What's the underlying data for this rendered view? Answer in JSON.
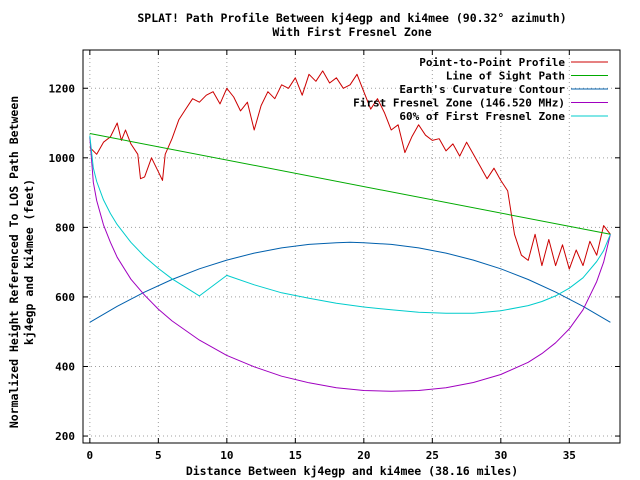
{
  "chart_data": {
    "type": "line",
    "title": "SPLAT! Path Profile Between kj4egp and ki4mee (90.32° azimuth)",
    "subtitle": "With First Fresnel Zone",
    "xlabel": "Distance Between kj4egp and ki4mee (38.16 miles)",
    "ylabel_line1": "Normalized Height Referenced To LOS Path Between",
    "ylabel_line2": "kj4egp and ki4mee (feet)",
    "xlim": [
      -0.5,
      38.7
    ],
    "ylim": [
      180,
      1310
    ],
    "xticks": [
      0,
      5,
      10,
      15,
      20,
      25,
      30,
      35
    ],
    "yticks": [
      200,
      400,
      600,
      800,
      1000,
      1200
    ],
    "grid": true,
    "legend_position": "top-right",
    "series": [
      {
        "name": "Point-to-Point Profile",
        "color": "#cc0000",
        "x": [
          0,
          0.5,
          1,
          1.5,
          2,
          2.3,
          2.6,
          3,
          3.5,
          3.7,
          4,
          4.5,
          5,
          5.3,
          5.5,
          6,
          6.5,
          7,
          7.5,
          8,
          8.5,
          9,
          9.5,
          10,
          10.5,
          11,
          11.5,
          12,
          12.5,
          13,
          13.5,
          14,
          14.5,
          15,
          15.5,
          16,
          16.5,
          17,
          17.5,
          18,
          18.5,
          19,
          19.5,
          20,
          20.5,
          21,
          21.5,
          22,
          22.5,
          23,
          23.5,
          24,
          24.5,
          25,
          25.5,
          26,
          26.5,
          27,
          27.5,
          28,
          28.5,
          29,
          29.5,
          30,
          30.5,
          31,
          31.5,
          32,
          32.5,
          33,
          33.5,
          34,
          34.5,
          35,
          35.5,
          36,
          36.5,
          37,
          37.5,
          38
        ],
        "y": [
          1030,
          1010,
          1045,
          1060,
          1100,
          1050,
          1080,
          1040,
          1010,
          940,
          945,
          1000,
          960,
          935,
          1010,
          1055,
          1110,
          1140,
          1170,
          1160,
          1180,
          1190,
          1155,
          1200,
          1175,
          1135,
          1160,
          1080,
          1150,
          1190,
          1170,
          1210,
          1200,
          1230,
          1180,
          1240,
          1220,
          1250,
          1215,
          1230,
          1200,
          1210,
          1240,
          1190,
          1140,
          1170,
          1130,
          1080,
          1095,
          1015,
          1060,
          1095,
          1065,
          1050,
          1055,
          1020,
          1040,
          1005,
          1045,
          1010,
          975,
          940,
          970,
          935,
          905,
          780,
          720,
          705,
          780,
          690,
          765,
          690,
          750,
          680,
          735,
          690,
          760,
          720,
          805,
          780
        ],
        "dash": false
      },
      {
        "name": "Line of Sight Path",
        "color": "#00aa00",
        "x": [
          0,
          38
        ],
        "y": [
          1070,
          780
        ],
        "dash": false
      },
      {
        "name": "Earth's Curvature Contour",
        "color": "#0060ad",
        "x": [
          0,
          2,
          4,
          6,
          8,
          10,
          12,
          14,
          16,
          18,
          19,
          20,
          22,
          24,
          26,
          28,
          30,
          32,
          34,
          36,
          38
        ],
        "y": [
          527,
          573,
          614,
          650,
          681,
          706,
          726,
          741,
          751,
          756,
          757,
          756,
          751,
          741,
          726,
          706,
          681,
          650,
          614,
          573,
          527
        ],
        "dash": false
      },
      {
        "name": "First Fresnel Zone (146.520 MHz)",
        "color": "#a000c0",
        "x": [
          0,
          0.25,
          0.5,
          1,
          1.5,
          2,
          3,
          4,
          5,
          6,
          8,
          10,
          12,
          14,
          16,
          18,
          20,
          22,
          24,
          26,
          28,
          30,
          32,
          33,
          34,
          35,
          36,
          37,
          37.5,
          38
        ],
        "y": [
          1060,
          930,
          877,
          807,
          757,
          714,
          651,
          605,
          565,
          531,
          476,
          432,
          399,
          372,
          353,
          339,
          331,
          329,
          331,
          339,
          354,
          377,
          412,
          437,
          468,
          508,
          563,
          644,
          700,
          780
        ],
        "dash": false
      },
      {
        "name": "60% of First Fresnel Zone",
        "color": "#00cccc",
        "x": [
          0,
          0.25,
          0.5,
          1,
          1.5,
          2,
          3,
          4,
          5,
          6,
          8,
          10,
          12,
          14,
          16,
          18,
          20,
          22,
          24,
          26,
          28,
          30,
          32,
          33,
          34,
          35,
          36,
          37,
          37.5,
          38
        ],
        "y": [
          1064,
          971,
          932,
          879,
          840,
          808,
          757,
          716,
          682,
          652,
          603,
          662,
          635,
          612,
          596,
          582,
          571,
          563,
          556,
          553,
          553,
          560,
          575,
          587,
          603,
          625,
          655,
          702,
          733,
          780
        ],
        "dash": false
      }
    ]
  }
}
